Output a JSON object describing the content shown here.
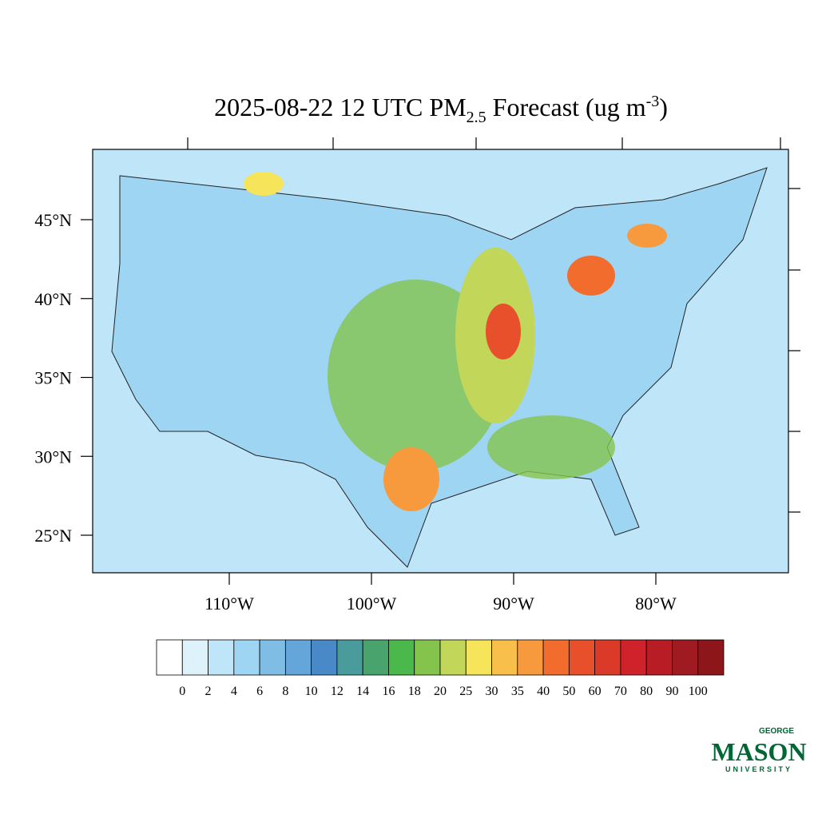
{
  "title": {
    "main": "2025-08-22 12 UTC PM",
    "sub": "2.5",
    "mid": " Forecast (ug m",
    "sup": "-3",
    "end": ")"
  },
  "lat_ticks": [
    {
      "value": 45,
      "label": "45°N"
    },
    {
      "value": 40,
      "label": "40°N"
    },
    {
      "value": 35,
      "label": "35°N"
    },
    {
      "value": 30,
      "label": "30°N"
    },
    {
      "value": 25,
      "label": "25°N"
    }
  ],
  "lon_ticks": [
    {
      "value": -110,
      "label": "110°W"
    },
    {
      "value": -100,
      "label": "100°W"
    },
    {
      "value": -90,
      "label": "90°W"
    },
    {
      "value": -80,
      "label": "80°W"
    }
  ],
  "colorbar": {
    "levels": [
      0,
      2,
      4,
      6,
      8,
      10,
      12,
      14,
      16,
      18,
      20,
      25,
      30,
      35,
      40,
      50,
      60,
      70,
      80,
      90,
      100
    ],
    "colors": [
      "#ffffff",
      "#def2fb",
      "#bfe5f8",
      "#9dd5f3",
      "#80bde5",
      "#64a6d9",
      "#4a89c8",
      "#4a9c9c",
      "#48a46c",
      "#4bb84b",
      "#84c44c",
      "#c2d65a",
      "#f6e55a",
      "#f8c04a",
      "#f79a3e",
      "#f26c2e",
      "#e8502c",
      "#dc3a28",
      "#d0222a",
      "#b81d26",
      "#a01a22",
      "#8c1619"
    ]
  },
  "logo": {
    "top": "GEORGE",
    "name": "MASON",
    "bottom": "UNIVERSITY"
  }
}
